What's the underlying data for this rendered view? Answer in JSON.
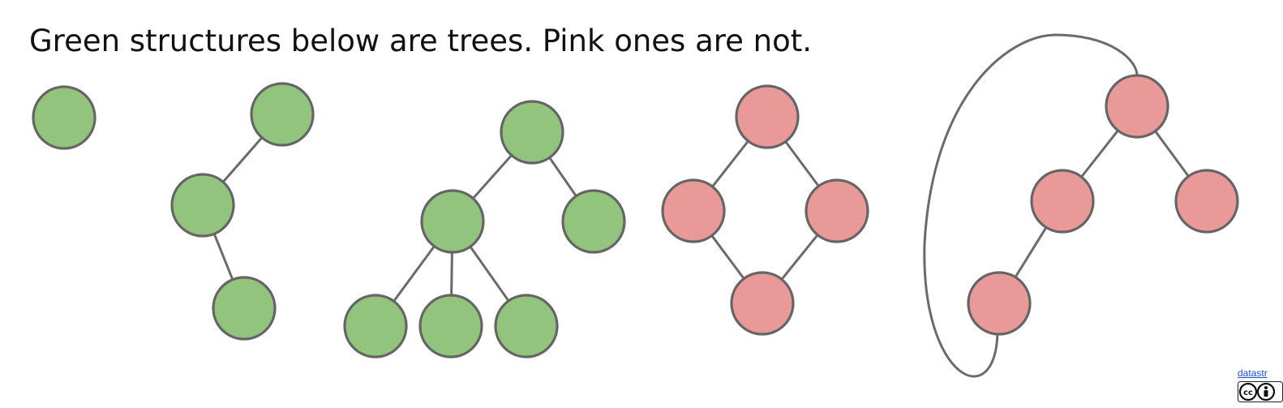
{
  "title": "Green structures below are trees. Pink ones are not.",
  "credit": {
    "link_text": "datastr",
    "badge_icon": "cc-by-license-icon"
  },
  "colors": {
    "tree": "#93c47d",
    "not_tree": "#ea9999",
    "outline": "#656565",
    "edge": "#6b6b6b"
  },
  "structures": [
    {
      "id": "tree-single-node",
      "kind": "tree",
      "nodes": [
        "a"
      ],
      "edges": []
    },
    {
      "id": "tree-path",
      "kind": "tree",
      "nodes": [
        "a",
        "b",
        "c"
      ],
      "edges": [
        [
          "a",
          "b"
        ],
        [
          "b",
          "c"
        ]
      ]
    },
    {
      "id": "tree-branching",
      "kind": "tree",
      "nodes": [
        "a",
        "b",
        "c",
        "d",
        "e",
        "f"
      ],
      "edges": [
        [
          "a",
          "b"
        ],
        [
          "a",
          "c"
        ],
        [
          "b",
          "d"
        ],
        [
          "b",
          "e"
        ],
        [
          "b",
          "f"
        ]
      ]
    },
    {
      "id": "cycle-diamond",
      "kind": "not-tree",
      "nodes": [
        "a",
        "b",
        "c",
        "d"
      ],
      "edges": [
        [
          "a",
          "b"
        ],
        [
          "a",
          "c"
        ],
        [
          "b",
          "d"
        ],
        [
          "c",
          "d"
        ]
      ]
    },
    {
      "id": "cycle-back-edge",
      "kind": "not-tree",
      "nodes": [
        "a",
        "b",
        "c",
        "d"
      ],
      "edges": [
        [
          "a",
          "b"
        ],
        [
          "a",
          "c"
        ],
        [
          "b",
          "d"
        ],
        [
          "d",
          "a"
        ]
      ]
    }
  ]
}
